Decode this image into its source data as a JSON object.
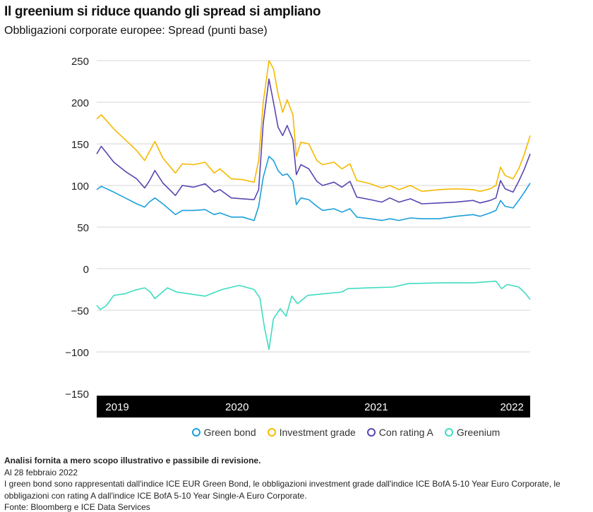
{
  "chart_data": {
    "type": "line",
    "title": "Il greenium si riduce quando gli spread si ampliano",
    "subtitle": "Obbligazioni corporate europee: Spread (punti base)",
    "xlabel": "",
    "ylabel": "",
    "ylim": [
      -150,
      250
    ],
    "yticks": [
      250,
      200,
      150,
      100,
      50,
      0,
      -50,
      -100,
      -150
    ],
    "xticks": [
      {
        "label": "2019",
        "month": 1.8
      },
      {
        "label": "2020",
        "month": 12.3
      },
      {
        "label": "2021",
        "month": 24.5
      },
      {
        "label": "2022",
        "month": 36.4
      }
    ],
    "x_unit": "months since Jan 2019",
    "xlim": [
      0,
      38
    ],
    "grid": true,
    "legend_position": "bottom",
    "series": [
      {
        "name": "Green bond",
        "color": "#1a9fdc",
        "points": [
          [
            0,
            95
          ],
          [
            0.4,
            99
          ],
          [
            1.5,
            92
          ],
          [
            2.5,
            85
          ],
          [
            3.5,
            78
          ],
          [
            4.2,
            74
          ],
          [
            4.6,
            80
          ],
          [
            5.1,
            85
          ],
          [
            5.8,
            78
          ],
          [
            6.9,
            65
          ],
          [
            7.5,
            70
          ],
          [
            8.5,
            70
          ],
          [
            9.5,
            71
          ],
          [
            10.3,
            65
          ],
          [
            10.8,
            67
          ],
          [
            11.8,
            62
          ],
          [
            12.8,
            62
          ],
          [
            13.8,
            58
          ],
          [
            14.2,
            75
          ],
          [
            14.6,
            110
          ],
          [
            15.1,
            135
          ],
          [
            15.5,
            130
          ],
          [
            15.9,
            118
          ],
          [
            16.3,
            112
          ],
          [
            16.7,
            114
          ],
          [
            17.2,
            105
          ],
          [
            17.5,
            77
          ],
          [
            17.9,
            85
          ],
          [
            18.6,
            83
          ],
          [
            19.3,
            75
          ],
          [
            19.8,
            70
          ],
          [
            20.8,
            72
          ],
          [
            21.5,
            68
          ],
          [
            22.2,
            72
          ],
          [
            22.8,
            62
          ],
          [
            24,
            60
          ],
          [
            25,
            58
          ],
          [
            25.7,
            60
          ],
          [
            26.5,
            58
          ],
          [
            27.5,
            61
          ],
          [
            28.5,
            60
          ],
          [
            30,
            60
          ],
          [
            31.5,
            63
          ],
          [
            33,
            65
          ],
          [
            33.6,
            63
          ],
          [
            34.5,
            67
          ],
          [
            35,
            70
          ],
          [
            35.4,
            82
          ],
          [
            35.8,
            75
          ],
          [
            36.5,
            73
          ],
          [
            37,
            82
          ],
          [
            37.5,
            92
          ],
          [
            38,
            103
          ]
        ]
      },
      {
        "name": "Investment grade",
        "color": "#f6b900",
        "points": [
          [
            0,
            180
          ],
          [
            0.4,
            185
          ],
          [
            1.5,
            168
          ],
          [
            2.5,
            155
          ],
          [
            3.5,
            142
          ],
          [
            4.2,
            130
          ],
          [
            4.6,
            140
          ],
          [
            5.1,
            153
          ],
          [
            5.8,
            133
          ],
          [
            6.9,
            115
          ],
          [
            7.5,
            126
          ],
          [
            8.5,
            125
          ],
          [
            9.5,
            128
          ],
          [
            10.3,
            115
          ],
          [
            10.8,
            120
          ],
          [
            11.8,
            108
          ],
          [
            12.8,
            107
          ],
          [
            13.8,
            104
          ],
          [
            14.2,
            130
          ],
          [
            14.6,
            200
          ],
          [
            15.1,
            250
          ],
          [
            15.5,
            240
          ],
          [
            15.9,
            210
          ],
          [
            16.3,
            188
          ],
          [
            16.7,
            203
          ],
          [
            17.2,
            185
          ],
          [
            17.5,
            135
          ],
          [
            17.9,
            152
          ],
          [
            18.6,
            150
          ],
          [
            19.3,
            130
          ],
          [
            19.8,
            125
          ],
          [
            20.8,
            128
          ],
          [
            21.5,
            120
          ],
          [
            22.2,
            126
          ],
          [
            22.8,
            106
          ],
          [
            24,
            102
          ],
          [
            25,
            97
          ],
          [
            25.7,
            100
          ],
          [
            26.5,
            95
          ],
          [
            27.5,
            100
          ],
          [
            28.5,
            93
          ],
          [
            30,
            95
          ],
          [
            31.5,
            96
          ],
          [
            33,
            95
          ],
          [
            33.6,
            93
          ],
          [
            34.5,
            96
          ],
          [
            35,
            100
          ],
          [
            35.4,
            122
          ],
          [
            35.8,
            112
          ],
          [
            36.5,
            108
          ],
          [
            37,
            120
          ],
          [
            37.5,
            138
          ],
          [
            38,
            160
          ]
        ]
      },
      {
        "name": "Con rating A",
        "color": "#5a45b2",
        "points": [
          [
            0,
            138
          ],
          [
            0.4,
            147
          ],
          [
            1.5,
            128
          ],
          [
            2.5,
            117
          ],
          [
            3.5,
            108
          ],
          [
            4.2,
            97
          ],
          [
            4.6,
            105
          ],
          [
            5.1,
            118
          ],
          [
            5.8,
            103
          ],
          [
            6.9,
            88
          ],
          [
            7.5,
            100
          ],
          [
            8.5,
            98
          ],
          [
            9.5,
            102
          ],
          [
            10.3,
            92
          ],
          [
            10.8,
            95
          ],
          [
            11.8,
            85
          ],
          [
            12.8,
            84
          ],
          [
            13.8,
            83
          ],
          [
            14.2,
            95
          ],
          [
            14.6,
            175
          ],
          [
            15.1,
            228
          ],
          [
            15.5,
            200
          ],
          [
            15.9,
            170
          ],
          [
            16.3,
            160
          ],
          [
            16.7,
            172
          ],
          [
            17.2,
            155
          ],
          [
            17.5,
            113
          ],
          [
            17.9,
            125
          ],
          [
            18.6,
            120
          ],
          [
            19.3,
            105
          ],
          [
            19.8,
            100
          ],
          [
            20.8,
            104
          ],
          [
            21.5,
            98
          ],
          [
            22.2,
            105
          ],
          [
            22.8,
            86
          ],
          [
            24,
            83
          ],
          [
            25,
            80
          ],
          [
            25.7,
            85
          ],
          [
            26.5,
            80
          ],
          [
            27.5,
            84
          ],
          [
            28.5,
            78
          ],
          [
            30,
            79
          ],
          [
            31.5,
            80
          ],
          [
            33,
            82
          ],
          [
            33.6,
            79
          ],
          [
            34.5,
            82
          ],
          [
            35,
            85
          ],
          [
            35.4,
            106
          ],
          [
            35.8,
            96
          ],
          [
            36.5,
            92
          ],
          [
            37,
            105
          ],
          [
            37.5,
            120
          ],
          [
            38,
            138
          ]
        ]
      },
      {
        "name": "Greenium",
        "color": "#3fdcc2",
        "points": [
          [
            0,
            -44
          ],
          [
            0.3,
            -49
          ],
          [
            0.8,
            -45
          ],
          [
            1.5,
            -32
          ],
          [
            2.5,
            -30
          ],
          [
            3.3,
            -26
          ],
          [
            4.2,
            -23
          ],
          [
            4.7,
            -28
          ],
          [
            5.1,
            -36
          ],
          [
            5.6,
            -30
          ],
          [
            6.2,
            -23
          ],
          [
            7,
            -28
          ],
          [
            8,
            -30
          ],
          [
            9.5,
            -33
          ],
          [
            11,
            -25
          ],
          [
            12.5,
            -20
          ],
          [
            13.8,
            -25
          ],
          [
            14.3,
            -35
          ],
          [
            14.7,
            -70
          ],
          [
            15.1,
            -97
          ],
          [
            15.5,
            -60
          ],
          [
            16.1,
            -48
          ],
          [
            16.6,
            -57
          ],
          [
            17.1,
            -33
          ],
          [
            17.6,
            -42
          ],
          [
            18.5,
            -32
          ],
          [
            20,
            -30
          ],
          [
            21.5,
            -28
          ],
          [
            22,
            -24
          ],
          [
            24,
            -23
          ],
          [
            26,
            -22
          ],
          [
            27.3,
            -18
          ],
          [
            30,
            -17
          ],
          [
            33,
            -17
          ],
          [
            35,
            -15
          ],
          [
            35.5,
            -24
          ],
          [
            36,
            -19
          ],
          [
            37,
            -22
          ],
          [
            37.6,
            -30
          ],
          [
            38,
            -37
          ]
        ]
      }
    ]
  },
  "footnotes": {
    "disclaimer": "Analisi fornita a mero scopo illustrativo e passibile di revisione.",
    "date": "Al 28 febbraio 2022",
    "note": "I green bond sono rappresentati dall'indice ICE EUR Green Bond, le obbligazioni investment grade dall'indice ICE BofA 5-10 Year Euro Corporate, le obbligazioni con rating A dall'indice ICE BofA 5-10 Year Single-A Euro Corporate.",
    "source": "Fonte: Bloomberg e ICE Data Services"
  }
}
